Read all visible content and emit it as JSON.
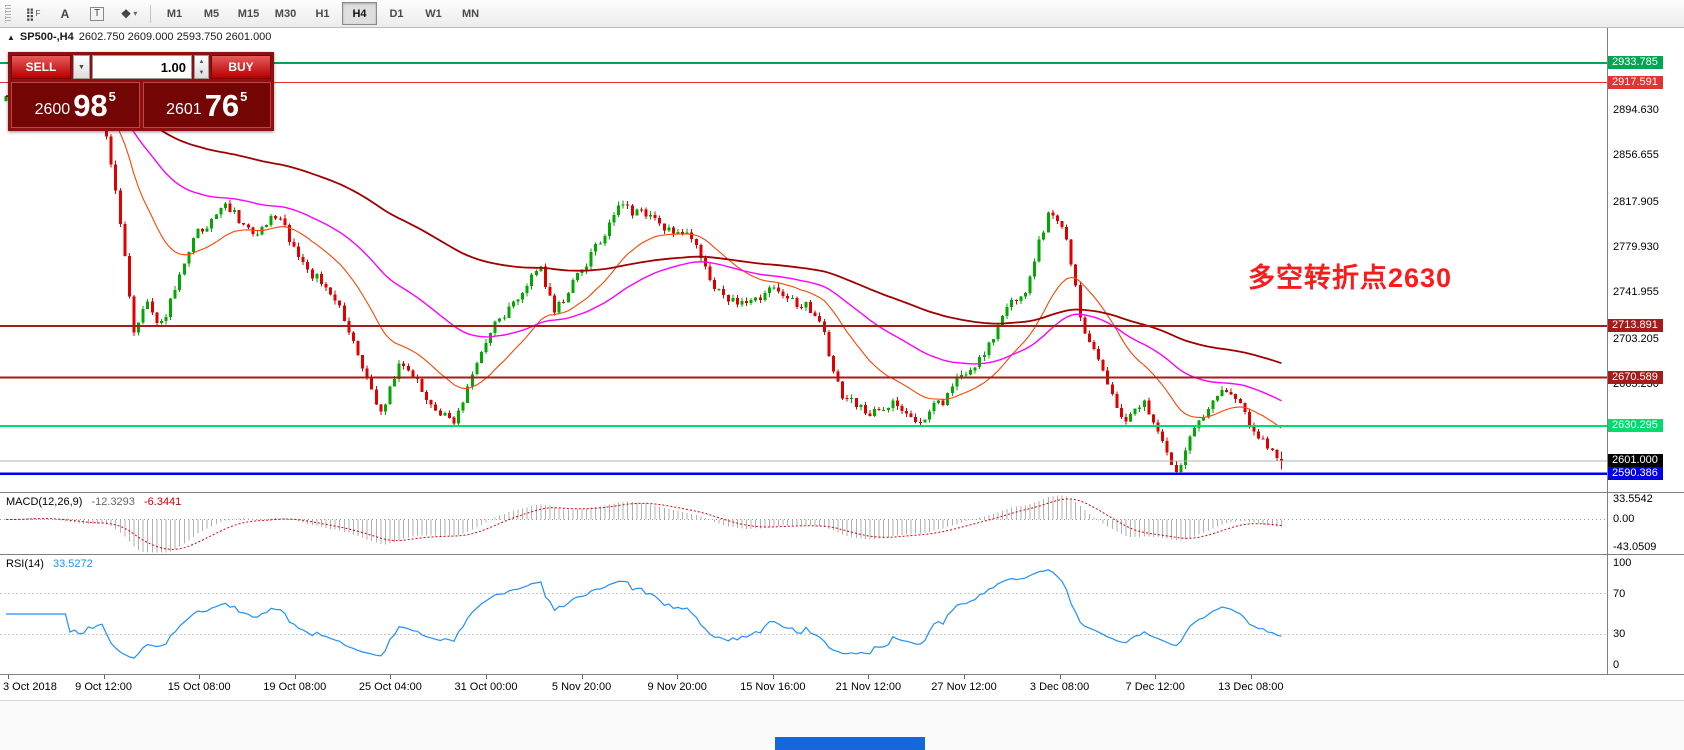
{
  "toolbar": {
    "tools": [
      {
        "name": "grid-tool",
        "glyph": "⣿",
        "badge": "F"
      },
      {
        "name": "label-tool",
        "glyph": "A"
      },
      {
        "name": "text-tool",
        "glyph": "T"
      },
      {
        "name": "shapes-tool",
        "glyph": "❖",
        "dropdown": true
      }
    ],
    "timeframes": [
      "M1",
      "M5",
      "M15",
      "M30",
      "H1",
      "H4",
      "D1",
      "W1",
      "MN"
    ],
    "active_timeframe": "H4"
  },
  "symbol_bar": {
    "collapse_icon": "▲",
    "symbol": "SP500-,H4",
    "ohlc_text": "2602.750 2609.000 2593.750 2601.000"
  },
  "trade_panel": {
    "panel_color": "#8E1111",
    "sell_label": "SELL",
    "buy_label": "BUY",
    "volume": "1.00",
    "sell_price": {
      "prefix": "2600",
      "big": "98",
      "sup": "5"
    },
    "buy_price": {
      "prefix": "2601",
      "big": "76",
      "sup": "5"
    }
  },
  "annotation": {
    "text": "多空转折点2630",
    "color": "#FF1A1A"
  },
  "macd_panel": {
    "title": "MACD(12,26,9)",
    "value_main": "-12.3293",
    "value_signal": "-6.3441"
  },
  "rsi_panel": {
    "title": "RSI(14)",
    "value": "33.5272"
  },
  "chart_data": {
    "type": "candlestick",
    "symbol": "SP500-",
    "timeframe": "H4",
    "current_ohlc": {
      "open": 2602.75,
      "high": 2609.0,
      "low": 2593.75,
      "close": 2601.0
    },
    "price_range": [
      2575,
      2963
    ],
    "price_axis_ticks": [
      2894.63,
      2856.655,
      2817.905,
      2779.93,
      2741.955,
      2703.205,
      2665.23
    ],
    "levels": [
      {
        "price": 2933.785,
        "label": "2933.785",
        "color": "#00A651",
        "width": 2
      },
      {
        "price": 2917.591,
        "label": "2917.591",
        "color": "#E63232",
        "width": 1
      },
      {
        "price": 2713.891,
        "label": "2713.891",
        "color": "#A61B1B",
        "width": 2
      },
      {
        "price": 2670.589,
        "label": "2670.589",
        "color": "#A61B1B",
        "width": 2
      },
      {
        "price": 2630.295,
        "label": "2630.295",
        "color": "#00DD6E",
        "width": 2
      },
      {
        "price": 2590.386,
        "label": "2590.386",
        "color": "#0000E8",
        "width": 2.5
      }
    ],
    "current_price": {
      "value": 2601.0,
      "label": "2601.000",
      "tag_color": "#000000",
      "line_color": "#B0B0B0"
    },
    "colors": {
      "up": "#00A800",
      "down": "#E00000",
      "ma_fast": "#FF4500",
      "ma_mid": "#FF00FF",
      "ma_slow": "#A00000",
      "macd_hist": "#B0B0B0",
      "macd_signal": "#E00000",
      "rsi_line": "#1E90FF"
    },
    "candles": {
      "count": 280,
      "path_anchors": [
        [
          0.0,
          2902
        ],
        [
          0.018,
          2916
        ],
        [
          0.035,
          2906
        ],
        [
          0.055,
          2882
        ],
        [
          0.08,
          2888
        ],
        [
          0.092,
          2800
        ],
        [
          0.104,
          2703
        ],
        [
          0.112,
          2736
        ],
        [
          0.124,
          2712
        ],
        [
          0.148,
          2784
        ],
        [
          0.174,
          2818
        ],
        [
          0.196,
          2790
        ],
        [
          0.214,
          2806
        ],
        [
          0.24,
          2760
        ],
        [
          0.262,
          2736
        ],
        [
          0.276,
          2694
        ],
        [
          0.296,
          2641
        ],
        [
          0.312,
          2684
        ],
        [
          0.33,
          2656
        ],
        [
          0.354,
          2632
        ],
        [
          0.38,
          2708
        ],
        [
          0.4,
          2734
        ],
        [
          0.42,
          2764
        ],
        [
          0.432,
          2726
        ],
        [
          0.452,
          2758
        ],
        [
          0.482,
          2814
        ],
        [
          0.5,
          2806
        ],
        [
          0.52,
          2794
        ],
        [
          0.54,
          2790
        ],
        [
          0.554,
          2744
        ],
        [
          0.582,
          2730
        ],
        [
          0.598,
          2744
        ],
        [
          0.618,
          2734
        ],
        [
          0.636,
          2726
        ],
        [
          0.656,
          2656
        ],
        [
          0.676,
          2642
        ],
        [
          0.698,
          2652
        ],
        [
          0.714,
          2633
        ],
        [
          0.734,
          2650
        ],
        [
          0.752,
          2676
        ],
        [
          0.768,
          2690
        ],
        [
          0.784,
          2730
        ],
        [
          0.8,
          2744
        ],
        [
          0.818,
          2812
        ],
        [
          0.83,
          2798
        ],
        [
          0.844,
          2710
        ],
        [
          0.86,
          2676
        ],
        [
          0.876,
          2634
        ],
        [
          0.892,
          2652
        ],
        [
          0.908,
          2612
        ],
        [
          0.918,
          2589
        ],
        [
          0.934,
          2634
        ],
        [
          0.95,
          2660
        ],
        [
          0.966,
          2650
        ],
        [
          0.982,
          2618
        ],
        [
          1.0,
          2601
        ]
      ]
    },
    "moving_averages": [
      {
        "period": 21,
        "color_key": "ma_fast"
      },
      {
        "period": 55,
        "color_key": "ma_mid"
      },
      {
        "period": 130,
        "color_key": "ma_slow"
      }
    ],
    "indicators": {
      "macd": {
        "label": "MACD(12,26,9)",
        "fast": 12,
        "slow": 26,
        "signal": 9,
        "current_main": -12.3293,
        "current_signal": -6.3441,
        "axis_ticks": [
          33.5542,
          0.0,
          -43.0509
        ],
        "range": [
          37,
          -47
        ]
      },
      "rsi": {
        "label": "RSI(14)",
        "period": 14,
        "current": 33.5272,
        "axis_ticks": [
          100,
          70,
          30,
          0
        ],
        "guide_levels": [
          70,
          30
        ],
        "range": [
          108,
          -8
        ]
      }
    },
    "x_axis_labels": [
      "3 Oct 2018",
      "9 Oct 12:00",
      "15 Oct 08:00",
      "19 Oct 08:00",
      "25 Oct 04:00",
      "31 Oct 00:00",
      "5 Nov 20:00",
      "9 Nov 20:00",
      "15 Nov 16:00",
      "21 Nov 12:00",
      "27 Nov 12:00",
      "3 Dec 08:00",
      "7 Dec 12:00",
      "13 Dec 08:00"
    ]
  }
}
